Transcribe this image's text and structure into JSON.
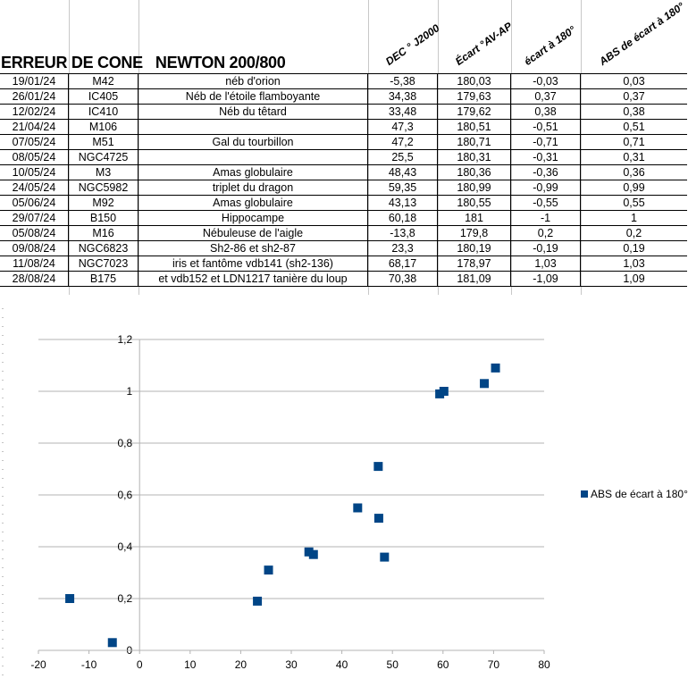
{
  "sheet": {
    "title": "ERREUR DE CONE   NEWTON 200/800",
    "headers": [
      "DEC ° J2000",
      "Écart °AV-AP",
      "écart à 180°",
      "ABS de écart à 180°"
    ],
    "rows": [
      [
        "19/01/24",
        "M42",
        "néb d'orion",
        "-5,38",
        "180,03",
        "-0,03",
        "0,03"
      ],
      [
        "26/01/24",
        "IC405",
        "Néb de l'étoile flamboyante",
        "34,38",
        "179,63",
        "0,37",
        "0,37"
      ],
      [
        "12/02/24",
        "IC410",
        "Néb du têtard",
        "33,48",
        "179,62",
        "0,38",
        "0,38"
      ],
      [
        "21/04/24",
        "M106",
        "",
        "47,3",
        "180,51",
        "-0,51",
        "0,51"
      ],
      [
        "07/05/24",
        "M51",
        "Gal du tourbillon",
        "47,2",
        "180,71",
        "-0,71",
        "0,71"
      ],
      [
        "08/05/24",
        "NGC4725",
        "",
        "25,5",
        "180,31",
        "-0,31",
        "0,31"
      ],
      [
        "10/05/24",
        "M3",
        "Amas globulaire",
        "48,43",
        "180,36",
        "-0,36",
        "0,36"
      ],
      [
        "24/05/24",
        "NGC5982",
        "triplet du dragon",
        "59,35",
        "180,99",
        "-0,99",
        "0,99"
      ],
      [
        "05/06/24",
        "M92",
        "Amas globulaire",
        "43,13",
        "180,55",
        "-0,55",
        "0,55"
      ],
      [
        "29/07/24",
        "B150",
        "Hippocampe",
        "60,18",
        "181",
        "-1",
        "1"
      ],
      [
        "05/08/24",
        "M16",
        "Nébuleuse de l'aigle",
        "-13,8",
        "179,8",
        "0,2",
        "0,2"
      ],
      [
        "09/08/24",
        "NGC6823",
        "Sh2-86 et sh2-87",
        "23,3",
        "180,19",
        "-0,19",
        "0,19"
      ],
      [
        "11/08/24",
        "NGC7023",
        "iris et fantôme vdb141 (sh2-136)",
        "68,17",
        "178,97",
        "1,03",
        "1,03"
      ],
      [
        "28/08/24",
        "B175",
        "et vdb152 et LDN1217 tanière du loup",
        "70,38",
        "181,09",
        "-1,09",
        "1,09"
      ]
    ]
  },
  "chart_data": {
    "type": "scatter",
    "title": "",
    "xlim": [
      -20,
      80
    ],
    "ylim": [
      0,
      1.2
    ],
    "xticks": [
      "-20",
      "-10",
      "0",
      "10",
      "20",
      "30",
      "40",
      "50",
      "60",
      "70",
      "80"
    ],
    "yticks": [
      "0",
      "0,2",
      "0,4",
      "0,6",
      "0,8",
      "1",
      "1,2"
    ],
    "grid": true,
    "legend": "right",
    "series": [
      {
        "name": "ABS de écart à 180°",
        "color": "#004586",
        "x": [
          -5.38,
          34.38,
          33.48,
          47.3,
          47.2,
          25.5,
          48.43,
          59.35,
          43.13,
          60.18,
          -13.8,
          23.3,
          68.17,
          70.38
        ],
        "y": [
          0.03,
          0.37,
          0.38,
          0.51,
          0.71,
          0.31,
          0.36,
          0.99,
          0.55,
          1,
          0.2,
          0.19,
          1.03,
          1.09
        ]
      }
    ]
  }
}
